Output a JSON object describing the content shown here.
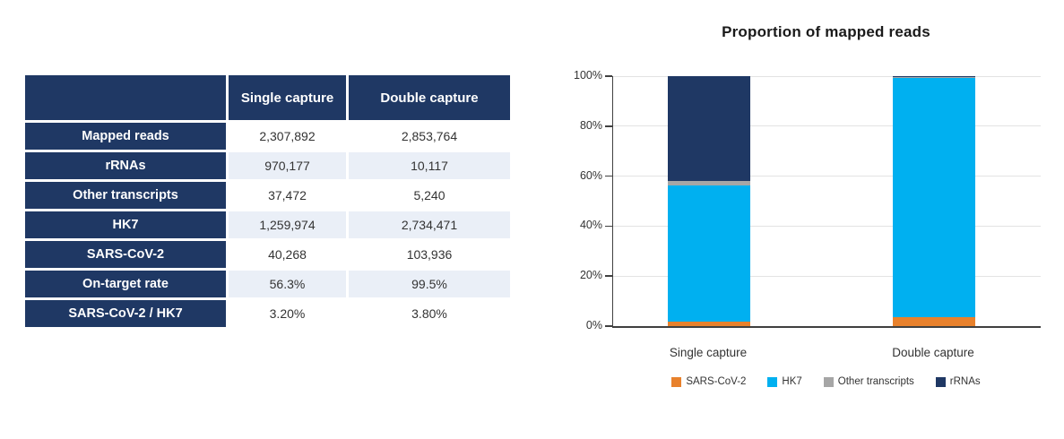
{
  "table": {
    "columns": [
      "",
      "Single capture",
      "Double capture"
    ],
    "rows": [
      {
        "label": "Mapped reads",
        "single": "2,307,892",
        "double": "2,853,764"
      },
      {
        "label": "rRNAs",
        "single": "970,177",
        "double": "10,117"
      },
      {
        "label": "Other transcripts",
        "single": "37,472",
        "double": "5,240"
      },
      {
        "label": "HK7",
        "single": "1,259,974",
        "double": "2,734,471"
      },
      {
        "label": "SARS-CoV-2",
        "single": "40,268",
        "double": "103,936"
      },
      {
        "label": "On-target rate",
        "single": "56.3%",
        "double": "99.5%"
      },
      {
        "label": "SARS-CoV-2 / HK7",
        "single": "3.20%",
        "double": "3.80%"
      }
    ],
    "header_bg": "#1F3864",
    "header_text_color": "#FFFFFF",
    "alt_row_bg": "#EAEFF7",
    "value_text_color": "#333333"
  },
  "chart_data": {
    "type": "bar",
    "stacked": true,
    "percent_stacked": true,
    "title": "Proportion of mapped reads",
    "categories": [
      "Single capture",
      "Double capture"
    ],
    "series": [
      {
        "name": "SARS-CoV-2",
        "color": "#E8812C",
        "values": [
          1.74,
          3.64
        ]
      },
      {
        "name": "HK7",
        "color": "#00B0F0",
        "values": [
          54.6,
          95.82
        ]
      },
      {
        "name": "Other transcripts",
        "color": "#A6A6A6",
        "values": [
          1.62,
          0.18
        ]
      },
      {
        "name": "rRNAs",
        "color": "#1F3864",
        "values": [
          42.04,
          0.36
        ]
      }
    ],
    "yticks": [
      "0%",
      "20%",
      "40%",
      "60%",
      "80%",
      "100%"
    ],
    "ylim": [
      0,
      100
    ],
    "grid": true,
    "gridline_color": "#E3E3E3",
    "axis_color": "#404040",
    "legend_position": "bottom"
  }
}
